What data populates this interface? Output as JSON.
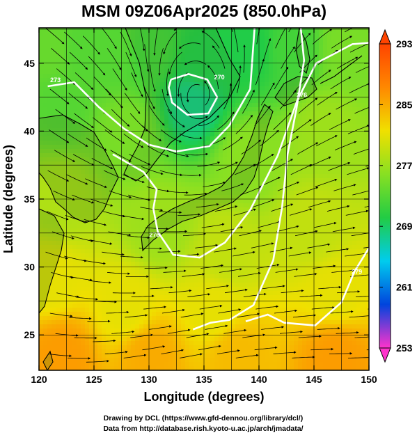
{
  "chart_data": {
    "type": "heatmap",
    "title": "MSM 09Z06Apr2025 (850.0hPa)",
    "xlabel": "Longitude (degrees)",
    "ylabel": "Latitude  (degrees)",
    "xlim": [
      120,
      150
    ],
    "ylim": [
      22.4,
      47.6
    ],
    "x_ticks": [
      120,
      125,
      130,
      135,
      140,
      145,
      150
    ],
    "y_ticks": [
      25,
      30,
      35,
      40,
      45
    ],
    "x_tick_labels": [
      "120",
      "125",
      "130",
      "135",
      "140",
      "145",
      "150"
    ],
    "y_tick_labels": [
      "25",
      "30",
      "35",
      "40",
      "45"
    ],
    "grid": true,
    "variable": "temperature (K) shaded, streamlines, white isotherm contours",
    "colorbar": {
      "min": 253,
      "max": 293,
      "ticks": [
        253,
        261,
        269,
        277,
        285,
        293
      ],
      "tick_labels": [
        "253",
        "261",
        "269",
        "277",
        "285",
        "293"
      ],
      "placement": "right",
      "stops": [
        "#ff33cc",
        "#0044dd",
        "#00ccee",
        "#22cc44",
        "#88e022",
        "#f0e000",
        "#ff8800",
        "#ff4400"
      ]
    },
    "temperature_field": [
      {
        "lon": 121,
        "lat": 46,
        "value": 274
      },
      {
        "lon": 124,
        "lat": 46,
        "value": 273
      },
      {
        "lon": 127,
        "lat": 46,
        "value": 273
      },
      {
        "lon": 130,
        "lat": 46,
        "value": 272
      },
      {
        "lon": 135,
        "lat": 45,
        "value": 270
      },
      {
        "lon": 139,
        "lat": 46,
        "value": 270
      },
      {
        "lon": 143,
        "lat": 46,
        "value": 272
      },
      {
        "lon": 148,
        "lat": 46,
        "value": 275
      },
      {
        "lon": 134,
        "lat": 42,
        "value": 268
      },
      {
        "lon": 122,
        "lat": 42,
        "value": 273
      },
      {
        "lon": 128,
        "lat": 40,
        "value": 275
      },
      {
        "lon": 139,
        "lat": 38,
        "value": 276
      },
      {
        "lon": 146,
        "lat": 40,
        "value": 277
      },
      {
        "lon": 122,
        "lat": 35,
        "value": 278
      },
      {
        "lon": 131,
        "lat": 33,
        "value": 277
      },
      {
        "lon": 137,
        "lat": 31,
        "value": 279
      },
      {
        "lon": 145,
        "lat": 33,
        "value": 279
      },
      {
        "lon": 121,
        "lat": 29,
        "value": 281
      },
      {
        "lon": 128,
        "lat": 27,
        "value": 281
      },
      {
        "lon": 136,
        "lat": 27,
        "value": 281
      },
      {
        "lon": 147,
        "lat": 28,
        "value": 281
      },
      {
        "lon": 122,
        "lat": 23.5,
        "value": 286
      },
      {
        "lon": 130,
        "lat": 23.5,
        "value": 285
      },
      {
        "lon": 138,
        "lat": 23.5,
        "value": 284
      },
      {
        "lon": 147,
        "lat": 23.5,
        "value": 286
      }
    ],
    "contours": [
      {
        "level": 270,
        "label": "270",
        "points": [
          [
            132,
            43.8
          ],
          [
            133.6,
            44.2
          ],
          [
            135.3,
            43.8
          ],
          [
            136.2,
            42.5
          ],
          [
            135.4,
            41.3
          ],
          [
            133.5,
            41.2
          ],
          [
            132.1,
            42.1
          ],
          [
            131.8,
            43.2
          ],
          [
            132,
            43.8
          ]
        ],
        "label_at": [
          136.4,
          43.8
        ]
      },
      {
        "level": 273,
        "label": "273",
        "points": [
          [
            120.8,
            43.3
          ],
          [
            123.2,
            43.6
          ],
          [
            125.4,
            41.8
          ],
          [
            127.7,
            40.2
          ],
          [
            130,
            39
          ],
          [
            132.5,
            38.5
          ],
          [
            135.5,
            38.9
          ],
          [
            137.3,
            40.4
          ],
          [
            139.2,
            43.1
          ],
          [
            139.6,
            47.6
          ]
        ],
        "label_at": [
          121.5,
          43.6
        ]
      },
      {
        "level": 276,
        "label": "276",
        "points": [
          [
            126.7,
            38.3
          ],
          [
            128.2,
            37.6
          ],
          [
            129.5,
            37
          ],
          [
            130.7,
            35.7
          ],
          [
            130.4,
            34.3
          ],
          [
            130.8,
            32.6
          ],
          [
            132.2,
            30.9
          ],
          [
            134.6,
            30.7
          ],
          [
            136.9,
            31.8
          ],
          [
            139.2,
            34.2
          ],
          [
            141.7,
            38.2
          ],
          [
            143.5,
            42.3
          ],
          [
            145.2,
            45
          ],
          [
            148.5,
            46.4
          ],
          [
            150,
            46.5
          ]
        ],
        "label_at": [
          130.5,
          32.2
        ]
      },
      {
        "level": 276,
        "label": "276",
        "points": [
          [
            143.8,
            47.6
          ],
          [
            144.1,
            45.2
          ],
          [
            143.4,
            41.6
          ],
          [
            142.6,
            38.3
          ],
          [
            142.1,
            34.4
          ],
          [
            141.3,
            30.5
          ],
          [
            139.5,
            27.2
          ],
          [
            137.3,
            26.1
          ],
          [
            135.6,
            25.9
          ],
          [
            134,
            25.4
          ]
        ],
        "label_at": [
          143.9,
          42.5
        ]
      },
      {
        "level": 279,
        "label": "279",
        "points": [
          [
            138.8,
            26
          ],
          [
            140.8,
            26.5
          ],
          [
            142.3,
            25.9
          ],
          [
            145.1,
            25.7
          ],
          [
            147.5,
            27.4
          ],
          [
            148.7,
            29.7
          ],
          [
            150,
            31.4
          ]
        ],
        "label_at": [
          148.9,
          29.5
        ]
      }
    ],
    "low_center": {
      "lon": 134.5,
      "lat": 42.4
    }
  },
  "credits": {
    "line1": "Drawing by DCL (https://www.gfd-dennou.org/library/dcl/)",
    "line2": "Data from http://database.rish.kyoto-u.ac.jp/arch/jmadata/"
  }
}
